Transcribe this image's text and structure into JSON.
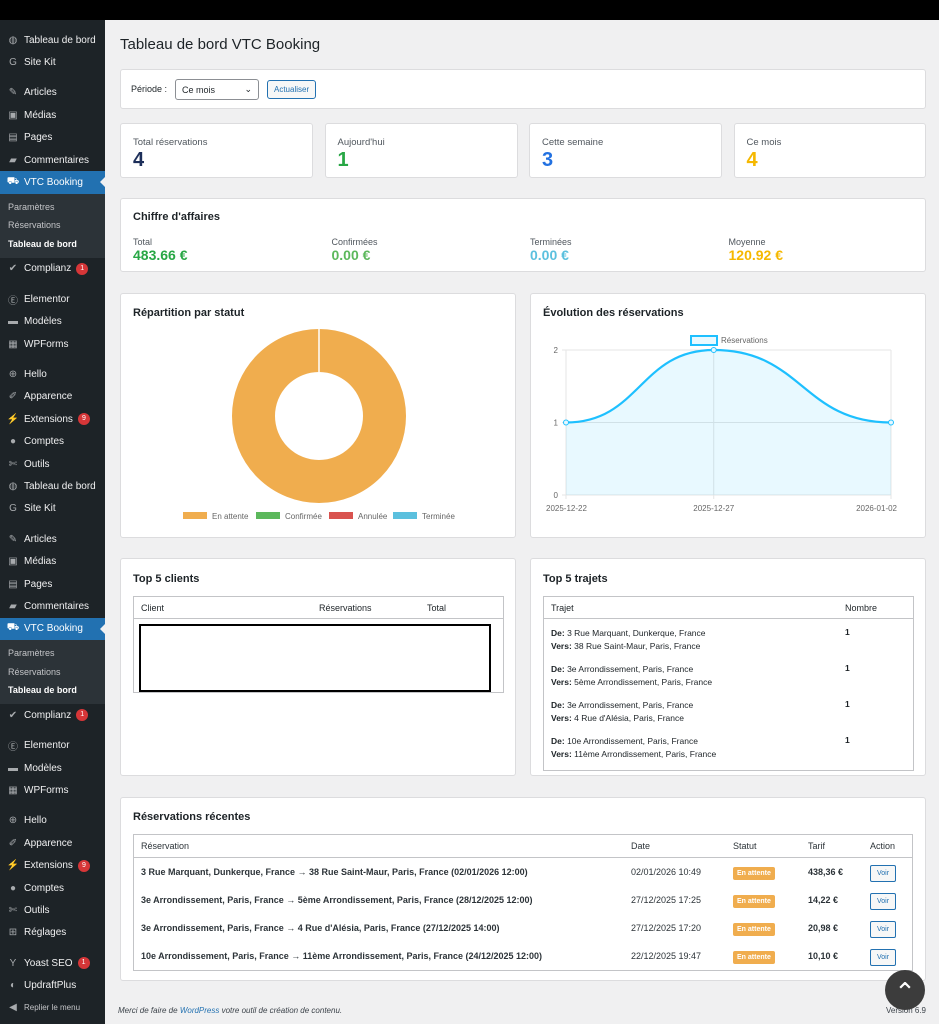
{
  "sidebar": {
    "items": [
      {
        "label": "Tableau de bord",
        "icon": "dashboard-icon",
        "g": "◍"
      },
      {
        "label": "Site Kit",
        "icon": "google-icon",
        "g": "G"
      },
      {
        "sep": true
      },
      {
        "label": "Articles",
        "icon": "pin-icon",
        "g": "✎"
      },
      {
        "label": "Médias",
        "icon": "media-icon",
        "g": "▣"
      },
      {
        "label": "Pages",
        "icon": "pages-icon",
        "g": "▤"
      },
      {
        "label": "Commentaires",
        "icon": "comment-icon",
        "g": "▰"
      },
      {
        "label": "VTC Booking",
        "icon": "car-icon",
        "g": "⛟",
        "active": true,
        "sub": [
          "Paramètres",
          "Réservations",
          "Tableau de bord"
        ]
      },
      {
        "label": "Complianz",
        "icon": "check-icon",
        "g": "✔",
        "badge": "1"
      },
      {
        "sep": true
      },
      {
        "label": "Elementor",
        "icon": "elementor-icon",
        "g": "Ⓔ"
      },
      {
        "label": "Modèles",
        "icon": "folder-icon",
        "g": "▬"
      },
      {
        "label": "WPForms",
        "icon": "forms-icon",
        "g": "▦"
      },
      {
        "sep": true
      },
      {
        "label": "Hello",
        "icon": "plus-icon",
        "g": "⊕"
      },
      {
        "label": "Apparence",
        "icon": "brush-icon",
        "g": "✐"
      },
      {
        "label": "Extensions",
        "icon": "plugin-icon",
        "g": "⚡",
        "badge": "9"
      },
      {
        "label": "Comptes",
        "icon": "user-icon",
        "g": "●"
      },
      {
        "label": "Outils",
        "icon": "wrench-icon",
        "g": "✄"
      },
      {
        "label": "Tableau de bord",
        "icon": "dashboard-icon",
        "g": "◍"
      },
      {
        "label": "Site Kit",
        "icon": "google-icon",
        "g": "G"
      },
      {
        "sep": true
      },
      {
        "label": "Articles",
        "icon": "pin-icon",
        "g": "✎"
      },
      {
        "label": "Médias",
        "icon": "media-icon",
        "g": "▣"
      },
      {
        "label": "Pages",
        "icon": "pages-icon",
        "g": "▤"
      },
      {
        "label": "Commentaires",
        "icon": "comment-icon",
        "g": "▰"
      },
      {
        "label": "VTC Booking",
        "icon": "car-icon",
        "g": "⛟",
        "active": true,
        "sub": [
          "Paramètres",
          "Réservations",
          "Tableau de bord"
        ]
      },
      {
        "label": "Complianz",
        "icon": "check-icon",
        "g": "✔",
        "badge": "1"
      },
      {
        "sep": true
      },
      {
        "label": "Elementor",
        "icon": "elementor-icon",
        "g": "Ⓔ"
      },
      {
        "label": "Modèles",
        "icon": "folder-icon",
        "g": "▬"
      },
      {
        "label": "WPForms",
        "icon": "forms-icon",
        "g": "▦"
      },
      {
        "sep": true
      },
      {
        "label": "Hello",
        "icon": "plus-icon",
        "g": "⊕"
      },
      {
        "label": "Apparence",
        "icon": "brush-icon",
        "g": "✐"
      },
      {
        "label": "Extensions",
        "icon": "plugin-icon",
        "g": "⚡",
        "badge": "9"
      },
      {
        "label": "Comptes",
        "icon": "user-icon",
        "g": "●"
      },
      {
        "label": "Outils",
        "icon": "wrench-icon",
        "g": "✄"
      },
      {
        "label": "Réglages",
        "icon": "settings-icon",
        "g": "⊞"
      },
      {
        "sep": true
      },
      {
        "label": "Yoast SEO",
        "icon": "yoast-icon",
        "g": "Y",
        "badge": "1"
      },
      {
        "label": "UpdraftPlus",
        "icon": "updraft-icon",
        "g": "◐"
      },
      {
        "label": "Replier le menu",
        "icon": "collapse-icon",
        "g": "◀",
        "small": true
      }
    ]
  },
  "page": {
    "title": "Tableau de bord VTC Booking"
  },
  "filter": {
    "label": "Période :",
    "selected": "Ce mois",
    "button": "Actualiser"
  },
  "stats": [
    {
      "label": "Total réservations",
      "value": "4",
      "color": "#1d2f5a"
    },
    {
      "label": "Aujourd'hui",
      "value": "1",
      "color": "#28a745"
    },
    {
      "label": "Cette semaine",
      "value": "3",
      "color": "#2271e1"
    },
    {
      "label": "Ce mois",
      "value": "4",
      "color": "#f5b800"
    }
  ],
  "revenue": {
    "title": "Chiffre d'affaires",
    "items": [
      {
        "label": "Total",
        "value": "483.66 €",
        "color": "#28a745"
      },
      {
        "label": "Confirmées",
        "value": "0.00 €",
        "color": "#5cb85c"
      },
      {
        "label": "Terminées",
        "value": "0.00 €",
        "color": "#5bc0de"
      },
      {
        "label": "Moyenne",
        "value": "120.92 €",
        "color": "#f5b800"
      }
    ]
  },
  "chart_data": [
    {
      "type": "pie",
      "title": "Répartition par statut",
      "donut": true,
      "categories": [
        "En attente",
        "Confirmée",
        "Annulée",
        "Terminée"
      ],
      "values": [
        4,
        0,
        0,
        0
      ],
      "colors": [
        "#f0ad4e",
        "#5cb85c",
        "#d9534f",
        "#5bc0de"
      ],
      "legend": "bottom"
    },
    {
      "type": "area",
      "title": "Évolution des réservations",
      "x": [
        "2025-12-22",
        "2025-12-27",
        "2026-01-02"
      ],
      "series": [
        {
          "name": "Réservations",
          "values": [
            1,
            2,
            1
          ]
        }
      ],
      "ylim": [
        0,
        2
      ],
      "yticks": [
        "0",
        "1",
        "2"
      ],
      "color": "#1ec0ff",
      "grid": true,
      "legend": "top"
    }
  ],
  "top_clients": {
    "title": "Top 5 clients",
    "headers": [
      "Client",
      "Réservations",
      "Total"
    ]
  },
  "top_trips": {
    "title": "Top 5 trajets",
    "headers": [
      "Trajet",
      "Nombre"
    ],
    "from_label": "De:",
    "to_label": "Vers:",
    "rows": [
      {
        "from": "3 Rue Marquant, Dunkerque, France",
        "to": "38 Rue Saint-Maur, Paris, France",
        "count": "1"
      },
      {
        "from": "3e Arrondissement, Paris, France",
        "to": "5ème Arrondissement, Paris, France",
        "count": "1"
      },
      {
        "from": "3e Arrondissement, Paris, France",
        "to": "4 Rue d'Alésia, Paris, France",
        "count": "1"
      },
      {
        "from": "10e Arrondissement, Paris, France",
        "to": "11ème Arrondissement, Paris, France",
        "count": "1"
      }
    ]
  },
  "recent": {
    "title": "Réservations récentes",
    "headers": [
      "Réservation",
      "Date",
      "Statut",
      "Tarif",
      "Action"
    ],
    "rows": [
      {
        "res": "3 Rue Marquant, Dunkerque, France → 38 Rue Saint-Maur, Paris, France (02/01/2026 12:00)",
        "date": "02/01/2026 10:49",
        "status": "En attente",
        "tarif": "438,36 €",
        "action": "Voir"
      },
      {
        "res": "3e Arrondissement, Paris, France → 5ème Arrondissement, Paris, France (28/12/2025 12:00)",
        "date": "27/12/2025 17:25",
        "status": "En attente",
        "tarif": "14,22 €",
        "action": "Voir"
      },
      {
        "res": "3e Arrondissement, Paris, France → 4 Rue d'Alésia, Paris, France (27/12/2025 14:00)",
        "date": "27/12/2025 17:20",
        "status": "En attente",
        "tarif": "20,98 €",
        "action": "Voir"
      },
      {
        "res": "10e Arrondissement, Paris, France → 11ème Arrondissement, Paris, France (24/12/2025 12:00)",
        "date": "22/12/2025 19:47",
        "status": "En attente",
        "tarif": "10,10 €",
        "action": "Voir"
      }
    ]
  },
  "footer": {
    "prefix": "Merci de faire de ",
    "link": "WordPress",
    "suffix": " votre outil de création de contenu.",
    "version": "Version 6.9"
  }
}
